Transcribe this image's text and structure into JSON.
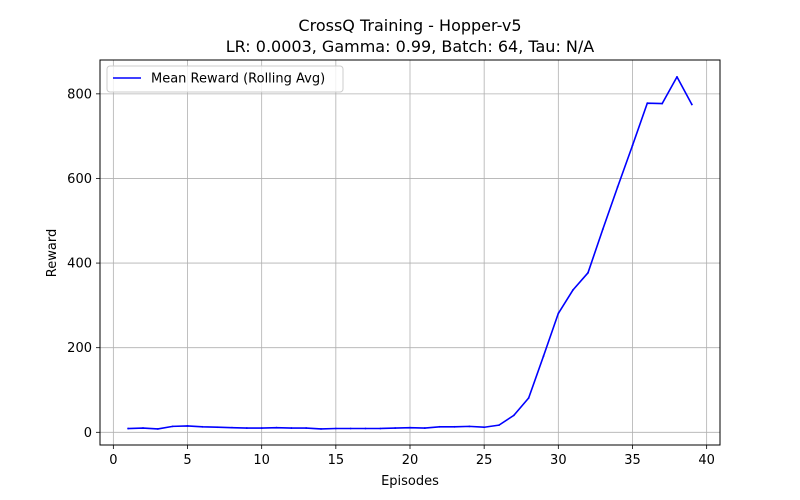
{
  "chart_data": {
    "type": "line",
    "title": "CrossQ Training - Hopper-v5",
    "subtitle": "LR: 0.0003, Gamma: 0.99, Batch: 64, Tau: N/A",
    "xlabel": "Episodes",
    "ylabel": "Reward",
    "xlim": [
      -0.9,
      40.9
    ],
    "ylim": [
      -30,
      880
    ],
    "xticks": [
      0,
      5,
      10,
      15,
      20,
      25,
      30,
      35,
      40
    ],
    "yticks": [
      0,
      200,
      400,
      600,
      800
    ],
    "grid": true,
    "legend_position": "top-left",
    "series": [
      {
        "name": "Mean Reward (Rolling Avg)",
        "color": "#0000ff",
        "x": [
          1,
          2,
          3,
          4,
          5,
          6,
          7,
          8,
          9,
          10,
          11,
          12,
          13,
          14,
          15,
          16,
          17,
          18,
          19,
          20,
          21,
          22,
          23,
          24,
          25,
          26,
          27,
          28,
          29,
          30,
          31,
          32,
          33,
          34,
          35,
          36,
          37,
          38,
          39
        ],
        "y": [
          9,
          10,
          8,
          14,
          15,
          13,
          12,
          11,
          10,
          10,
          11,
          10,
          10,
          8,
          9,
          9,
          9,
          9,
          10,
          11,
          10,
          13,
          13,
          14,
          12,
          17,
          40,
          81,
          180,
          281,
          337,
          377,
          480,
          580,
          678,
          778,
          777,
          840,
          775
        ]
      }
    ]
  }
}
